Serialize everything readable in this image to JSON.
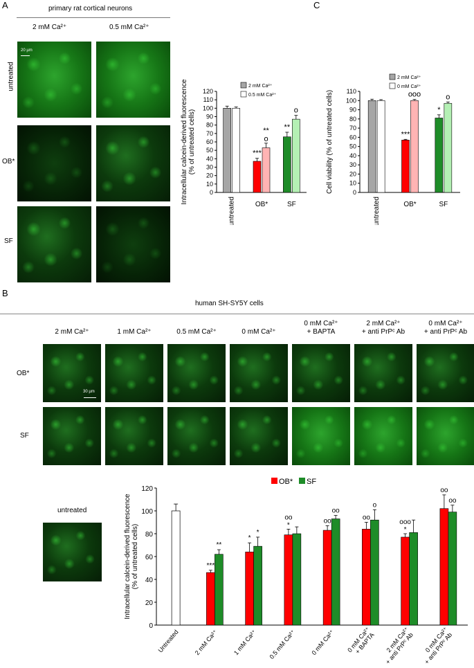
{
  "panel_a": {
    "letter": "A",
    "header": "primary rat cortical neurons",
    "columns": [
      "2 mM Ca²⁺",
      "0.5 mM Ca²⁺"
    ],
    "rows": [
      "untreated",
      "OB*",
      "SF"
    ],
    "scale_bar": "20 µm"
  },
  "panel_c": {
    "letter": "C"
  },
  "panel_b": {
    "letter": "B",
    "header": "human SH-SY5Y cells",
    "columns": [
      "2 mM Ca²⁺",
      "1 mM Ca²⁺",
      "0.5 mM Ca²⁺",
      "0 mM Ca²⁺",
      "0 mM Ca²⁺\n+ BAPTA",
      "2 mM Ca²⁺\n+ anti PrPᶜ Ab",
      "0 mM Ca²⁺\n+ anti PrPᶜ Ab"
    ],
    "rows": [
      "OB*",
      "SF"
    ],
    "scale_bar": "30 µm",
    "untreated_label": "untreated"
  },
  "chart_data": [
    {
      "id": "chart-a",
      "type": "bar",
      "ylabel": "Intracellular calcein-derived fluorescence\n(% of untreated cells)",
      "ylim": [
        0,
        120
      ],
      "yticks": [
        0,
        10,
        20,
        30,
        40,
        50,
        60,
        70,
        80,
        90,
        100,
        110,
        120
      ],
      "categories": [
        "untreated",
        "OB*",
        "SF"
      ],
      "series": [
        {
          "name": "2 mM Ca²⁺",
          "values": [
            100,
            37,
            66
          ],
          "errors": [
            2.5,
            3.5,
            5.5
          ],
          "colors": [
            "#a6a6a6",
            "#ff0000",
            "#1e8c28"
          ]
        },
        {
          "name": "0.5 mM Ca²⁺",
          "values": [
            100,
            53,
            87
          ],
          "errors": [
            1.5,
            5.5,
            4.5
          ],
          "colors": [
            "#ffffff",
            "#ffb4b4",
            "#b4f0b4"
          ]
        }
      ],
      "annotations": [
        [
          "",
          ""
        ],
        [
          "***",
          "**\no"
        ],
        [
          "**",
          "o"
        ]
      ],
      "legend": [
        "2 mM Ca²⁺",
        "0.5 mM Ca²⁺"
      ],
      "legend_position": "top-right"
    },
    {
      "id": "chart-c",
      "type": "bar",
      "ylabel": "Cell viability (% of untreated cells)",
      "ylim": [
        0,
        110
      ],
      "yticks": [
        0,
        10,
        20,
        30,
        40,
        50,
        60,
        70,
        80,
        90,
        100,
        110
      ],
      "categories": [
        "untreated",
        "OB*",
        "SF"
      ],
      "series": [
        {
          "name": "2 mM Ca²⁺",
          "values": [
            100,
            57,
            81
          ],
          "errors": [
            1.5,
            0.8,
            3.5
          ],
          "colors": [
            "#a6a6a6",
            "#ff0000",
            "#1e8c28"
          ]
        },
        {
          "name": "0 mM Ca²⁺",
          "values": [
            100,
            100,
            97
          ],
          "errors": [
            1,
            1.2,
            1.5
          ],
          "colors": [
            "#ffffff",
            "#ffb4b4",
            "#b4f0b4"
          ]
        }
      ],
      "annotations": [
        [
          "",
          ""
        ],
        [
          "***",
          "ooo"
        ],
        [
          "*",
          "o"
        ]
      ],
      "legend": [
        "2 mM Ca²⁺",
        "0 mM Ca²⁺"
      ],
      "legend_position": "top-right"
    },
    {
      "id": "chart-b",
      "type": "bar",
      "ylabel": "Intracellular calcein-derived fluorescence\n(% of untreated cells)",
      "ylim": [
        0,
        120
      ],
      "yticks": [
        0,
        20,
        40,
        60,
        80,
        100,
        120
      ],
      "categories": [
        "Untreated",
        "2 mM Ca²⁺",
        "1 mM Ca²⁺",
        "0.5 mM Ca²⁺",
        "0 mM Ca²⁺",
        "0 mM Ca²⁺\n+ BAPTA",
        "2 mM Ca²⁺\n+ anti PrPᶜ Ab",
        "0 mM Ca²⁺\n+ anti PrPᶜ Ab"
      ],
      "untreated": {
        "value": 100,
        "error": 6
      },
      "series": [
        {
          "name": "OB*",
          "color": "#ff0000",
          "values": [
            null,
            46,
            64,
            79,
            83,
            84,
            77,
            102
          ],
          "errors": [
            null,
            2,
            8,
            5,
            4,
            6,
            3,
            12
          ]
        },
        {
          "name": "SF",
          "color": "#1e8c28",
          "values": [
            null,
            62,
            69,
            80,
            93,
            92,
            81,
            99
          ],
          "errors": [
            null,
            4,
            8,
            6,
            3,
            9,
            11,
            6
          ]
        }
      ],
      "annotations": [
        [
          "",
          ""
        ],
        [
          "***",
          "**"
        ],
        [
          "*",
          "*"
        ],
        [
          "oo\n*",
          ""
        ],
        [
          "oo",
          "oo"
        ],
        [
          "oo",
          "o"
        ],
        [
          "ooo\n*",
          ""
        ],
        [
          "oo",
          "oo"
        ]
      ],
      "legend_position": "top-center"
    }
  ]
}
